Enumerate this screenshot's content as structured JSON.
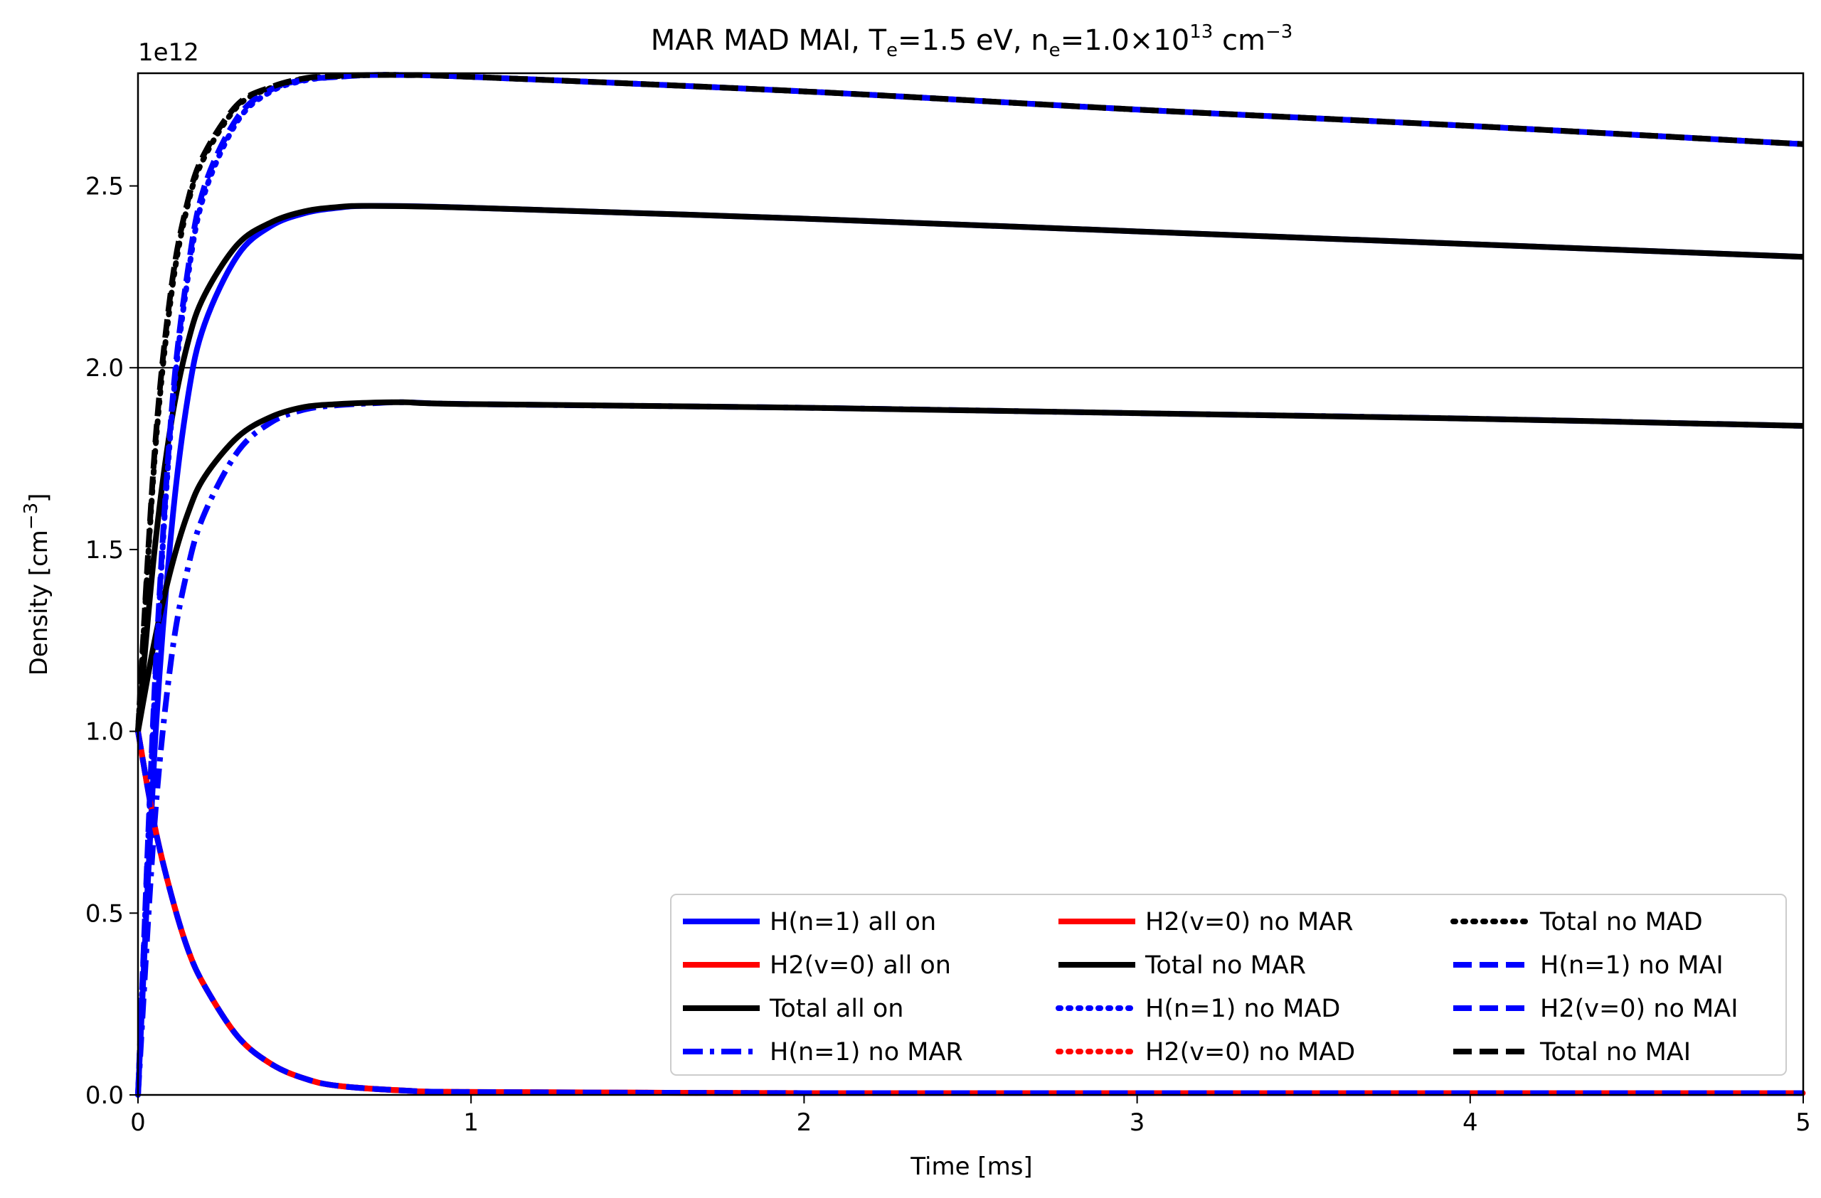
{
  "chart_data": {
    "type": "line",
    "title": {
      "prefix": "MAR MAD MAI,  T",
      "te_sub": "e",
      "te_val": "=1.5 eV, n",
      "ne_sub": "e",
      "ne_val": "=1.0×10",
      "ne_exp": "13",
      "unit": " cm",
      "unit_exp": "−3"
    },
    "xlabel": "Time [ms]",
    "ylabel": {
      "text": "Density [cm",
      "exp": "−3",
      "close": "]"
    },
    "offset_text": "1e12",
    "xlim": [
      0,
      5
    ],
    "ylim": [
      0,
      2.81
    ],
    "y_scale": 1000000000000.0,
    "xticks": [
      0,
      1,
      2,
      3,
      4,
      5
    ],
    "xtick_labels": [
      "0",
      "1",
      "2",
      "3",
      "4",
      "5"
    ],
    "yticks": [
      0.0,
      0.5,
      1.0,
      1.5,
      2.0,
      2.5
    ],
    "ytick_labels": [
      "0.0",
      "0.5",
      "1.0",
      "1.5",
      "2.0",
      "2.5"
    ],
    "hline": {
      "y": 2.0
    },
    "legend_position": "lower-right",
    "legend_columns": 3,
    "series": [
      {
        "name": "H(n=1) all on",
        "color": "#0000ff",
        "style": "solid",
        "x": [
          0,
          0.05,
          0.1,
          0.15,
          0.2,
          0.3,
          0.4,
          0.5,
          0.6,
          0.7,
          1,
          2,
          3,
          4,
          5
        ],
        "y": [
          0,
          0.95,
          1.55,
          1.92,
          2.12,
          2.31,
          2.39,
          2.425,
          2.44,
          2.445,
          2.44,
          2.41,
          2.375,
          2.34,
          2.305
        ]
      },
      {
        "name": "H2(v=0) all on",
        "color": "#ff0000",
        "style": "solid",
        "x": [
          0,
          0.05,
          0.1,
          0.15,
          0.2,
          0.3,
          0.4,
          0.5,
          0.6,
          0.8,
          1,
          2,
          3,
          4,
          5
        ],
        "y": [
          1.0,
          0.74,
          0.55,
          0.4,
          0.3,
          0.16,
          0.085,
          0.045,
          0.025,
          0.012,
          0.008,
          0.005,
          0.005,
          0.005,
          0.005
        ]
      },
      {
        "name": "Total all on",
        "color": "#000000",
        "style": "solid",
        "x": [
          0,
          0.05,
          0.1,
          0.15,
          0.2,
          0.3,
          0.4,
          0.5,
          0.6,
          0.7,
          1,
          2,
          3,
          4,
          5
        ],
        "y": [
          1.0,
          1.5,
          1.85,
          2.07,
          2.2,
          2.34,
          2.4,
          2.43,
          2.442,
          2.445,
          2.44,
          2.41,
          2.375,
          2.34,
          2.305
        ]
      },
      {
        "name": "H(n=1) no MAR",
        "color": "#0000ff",
        "style": "dashdot",
        "x": [
          0,
          0.05,
          0.1,
          0.15,
          0.2,
          0.3,
          0.4,
          0.5,
          0.6,
          0.7,
          0.8,
          1,
          2,
          3,
          4,
          5
        ],
        "y": [
          0,
          0.75,
          1.2,
          1.45,
          1.6,
          1.77,
          1.85,
          1.885,
          1.897,
          1.902,
          1.905,
          1.9,
          1.89,
          1.875,
          1.86,
          1.84
        ]
      },
      {
        "name": "H2(v=0) no MAR",
        "color": "#ff0000",
        "style": "solid",
        "x": [
          0,
          0.05,
          0.1,
          0.15,
          0.2,
          0.3,
          0.4,
          0.5,
          0.6,
          0.8,
          1,
          2,
          3,
          4,
          5
        ],
        "y": [
          1.0,
          0.74,
          0.55,
          0.4,
          0.3,
          0.16,
          0.085,
          0.045,
          0.025,
          0.012,
          0.008,
          0.005,
          0.005,
          0.005,
          0.005
        ]
      },
      {
        "name": "Total no MAR",
        "color": "#000000",
        "style": "solid",
        "x": [
          0,
          0.05,
          0.1,
          0.15,
          0.2,
          0.3,
          0.4,
          0.5,
          0.6,
          0.7,
          0.8,
          1,
          2,
          3,
          4,
          5
        ],
        "y": [
          1.0,
          1.25,
          1.45,
          1.6,
          1.7,
          1.81,
          1.865,
          1.892,
          1.9,
          1.904,
          1.905,
          1.9,
          1.89,
          1.875,
          1.86,
          1.84
        ]
      },
      {
        "name": "H(n=1) no MAD",
        "color": "#0000ff",
        "style": "dotted",
        "x": [
          0,
          0.05,
          0.1,
          0.15,
          0.2,
          0.3,
          0.4,
          0.5,
          0.6,
          0.7,
          0.8,
          1,
          2,
          3,
          4,
          5
        ],
        "y": [
          0,
          1.1,
          1.85,
          2.25,
          2.48,
          2.68,
          2.76,
          2.79,
          2.8,
          2.805,
          2.805,
          2.8,
          2.76,
          2.71,
          2.665,
          2.615
        ]
      },
      {
        "name": "H2(v=0) no MAD",
        "color": "#ff0000",
        "style": "dotted",
        "x": [
          0,
          0.05,
          0.1,
          0.15,
          0.2,
          0.3,
          0.4,
          0.5,
          0.6,
          0.8,
          1,
          2,
          3,
          4,
          5
        ],
        "y": [
          1.0,
          0.74,
          0.55,
          0.4,
          0.3,
          0.16,
          0.085,
          0.045,
          0.025,
          0.012,
          0.008,
          0.005,
          0.005,
          0.005,
          0.005
        ]
      },
      {
        "name": "Total no MAD",
        "color": "#000000",
        "style": "dotted",
        "x": [
          0,
          0.05,
          0.1,
          0.15,
          0.2,
          0.3,
          0.4,
          0.5,
          0.6,
          0.7,
          0.8,
          1,
          2,
          3,
          4,
          5
        ],
        "y": [
          1.0,
          1.75,
          2.2,
          2.45,
          2.58,
          2.72,
          2.77,
          2.795,
          2.802,
          2.805,
          2.805,
          2.8,
          2.76,
          2.71,
          2.665,
          2.615
        ]
      },
      {
        "name": "H(n=1) no MAI",
        "color": "#0000ff",
        "style": "dashed",
        "x": [
          0,
          0.05,
          0.1,
          0.15,
          0.2,
          0.3,
          0.4,
          0.5,
          0.6,
          0.7,
          0.8,
          1,
          2,
          3,
          4,
          5
        ],
        "y": [
          0,
          1.12,
          1.87,
          2.27,
          2.5,
          2.69,
          2.765,
          2.792,
          2.8,
          2.805,
          2.805,
          2.8,
          2.76,
          2.71,
          2.665,
          2.615
        ]
      },
      {
        "name": "H2(v=0) no MAI",
        "color": "#0000ff",
        "style": "dashed",
        "x": [
          0,
          0.05,
          0.1,
          0.15,
          0.2,
          0.3,
          0.4,
          0.5,
          0.6,
          0.8,
          1,
          2,
          3,
          4,
          5
        ],
        "y": [
          1.0,
          0.74,
          0.55,
          0.4,
          0.3,
          0.16,
          0.085,
          0.045,
          0.025,
          0.012,
          0.008,
          0.005,
          0.005,
          0.005,
          0.005
        ]
      },
      {
        "name": "Total no MAI",
        "color": "#000000",
        "style": "dashed",
        "x": [
          0,
          0.05,
          0.1,
          0.15,
          0.2,
          0.3,
          0.4,
          0.5,
          0.6,
          0.7,
          0.8,
          1,
          2,
          3,
          4,
          5
        ],
        "y": [
          1.0,
          1.77,
          2.22,
          2.46,
          2.59,
          2.725,
          2.772,
          2.796,
          2.803,
          2.805,
          2.805,
          2.8,
          2.76,
          2.71,
          2.665,
          2.615
        ]
      }
    ]
  }
}
